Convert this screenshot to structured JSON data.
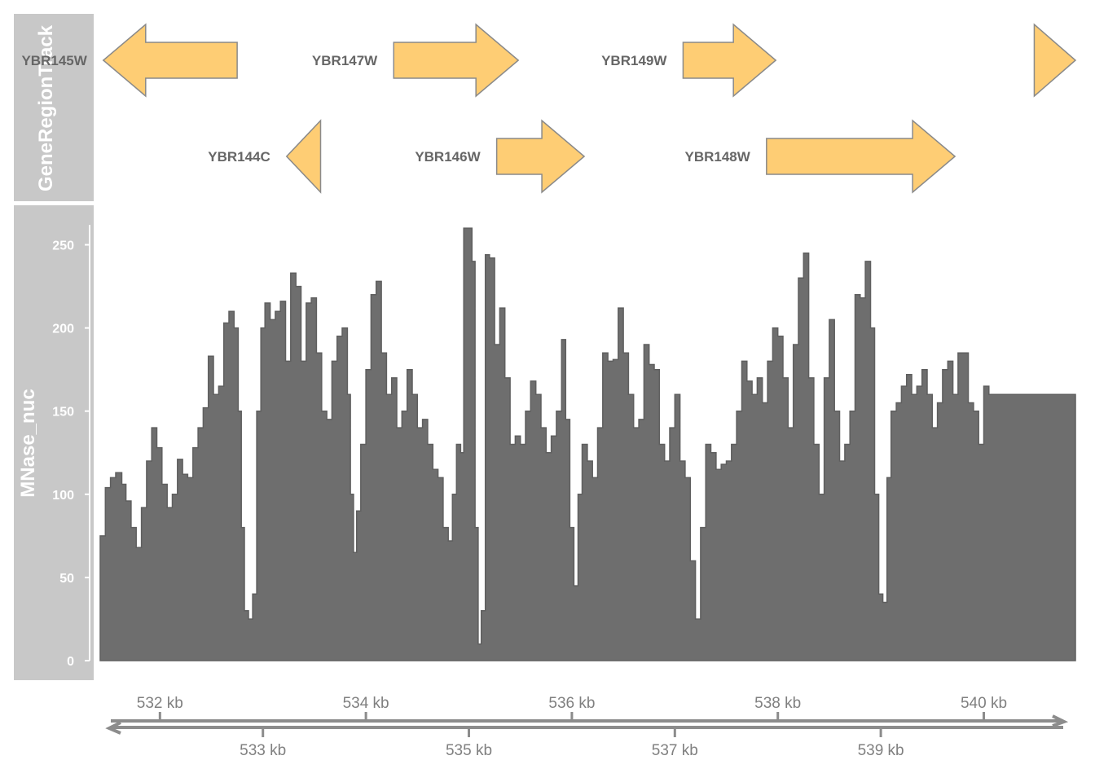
{
  "tracks": {
    "gene_track_title": "GeneRegionTrack",
    "data_track_title": "MNase_nuc"
  },
  "colors": {
    "gene_fill": "#fecd74",
    "gene_border": "#8a8a8a",
    "gene_label": "#666666",
    "data_fill": "#6e6e6e",
    "data_line": "#5f5f5f",
    "title_panel": "#c8c8c8",
    "axis": "#8c8c8c"
  },
  "chart_data": {
    "type": "area",
    "xaxis": {
      "range_kb": [
        531.42,
        540.89
      ],
      "ticks_top": [
        {
          "pos": 532,
          "label": "532 kb"
        },
        {
          "pos": 534,
          "label": "534 kb"
        },
        {
          "pos": 536,
          "label": "536 kb"
        },
        {
          "pos": 538,
          "label": "538 kb"
        },
        {
          "pos": 540,
          "label": "540 kb"
        }
      ],
      "ticks_bottom": [
        {
          "pos": 533,
          "label": "533 kb"
        },
        {
          "pos": 535,
          "label": "535 kb"
        },
        {
          "pos": 537,
          "label": "537 kb"
        },
        {
          "pos": 539,
          "label": "539 kb"
        }
      ]
    },
    "genes": [
      {
        "name": "YBR145W",
        "start": 531.45,
        "end": 532.75,
        "strand": "-",
        "row": 1
      },
      {
        "name": "YBR144C",
        "start": 533.23,
        "end": 533.56,
        "strand": "-",
        "row": 2
      },
      {
        "name": "YBR146W",
        "start": 535.27,
        "end": 536.12,
        "strand": "+",
        "row": 2
      },
      {
        "name": "YBR147W",
        "start": 534.27,
        "end": 535.48,
        "strand": "+",
        "row": 1
      },
      {
        "name": "YBR148W",
        "start": 537.89,
        "end": 539.72,
        "strand": "+",
        "row": 2
      },
      {
        "name": "YBR149W",
        "start": 537.08,
        "end": 537.98,
        "strand": "+",
        "row": 1
      },
      {
        "name": "",
        "start": 540.49,
        "end": 540.89,
        "strand": "+",
        "row": 1
      }
    ],
    "signal": {
      "name": "MNase_nuc",
      "ylim": [
        0,
        262
      ],
      "yticks": [
        0,
        50,
        100,
        150,
        200,
        250
      ],
      "points": [
        [
          531.42,
          75
        ],
        [
          531.47,
          104
        ],
        [
          531.52,
          110
        ],
        [
          531.57,
          113
        ],
        [
          531.63,
          106
        ],
        [
          531.67,
          96
        ],
        [
          531.72,
          80
        ],
        [
          531.77,
          68
        ],
        [
          531.82,
          92
        ],
        [
          531.87,
          120
        ],
        [
          531.92,
          140
        ],
        [
          531.97,
          128
        ],
        [
          532.02,
          106
        ],
        [
          532.07,
          92
        ],
        [
          532.12,
          100
        ],
        [
          532.17,
          121
        ],
        [
          532.22,
          112
        ],
        [
          532.27,
          110
        ],
        [
          532.32,
          128
        ],
        [
          532.37,
          140
        ],
        [
          532.42,
          152
        ],
        [
          532.47,
          183
        ],
        [
          532.52,
          160
        ],
        [
          532.57,
          165
        ],
        [
          532.62,
          203
        ],
        [
          532.67,
          210
        ],
        [
          532.72,
          200
        ],
        [
          532.76,
          150
        ],
        [
          532.79,
          80
        ],
        [
          532.82,
          30
        ],
        [
          532.86,
          25
        ],
        [
          532.9,
          40
        ],
        [
          532.94,
          150
        ],
        [
          532.98,
          200
        ],
        [
          533.02,
          215
        ],
        [
          533.07,
          205
        ],
        [
          533.12,
          210
        ],
        [
          533.17,
          216
        ],
        [
          533.22,
          180
        ],
        [
          533.27,
          233
        ],
        [
          533.32,
          225
        ],
        [
          533.37,
          180
        ],
        [
          533.42,
          215
        ],
        [
          533.47,
          218
        ],
        [
          533.52,
          185
        ],
        [
          533.57,
          150
        ],
        [
          533.62,
          145
        ],
        [
          533.67,
          180
        ],
        [
          533.72,
          195
        ],
        [
          533.77,
          200
        ],
        [
          533.82,
          160
        ],
        [
          533.85,
          100
        ],
        [
          533.88,
          65
        ],
        [
          533.91,
          90
        ],
        [
          533.95,
          130
        ],
        [
          534.0,
          175
        ],
        [
          534.05,
          220
        ],
        [
          534.1,
          228
        ],
        [
          534.15,
          185
        ],
        [
          534.2,
          160
        ],
        [
          534.25,
          170
        ],
        [
          534.3,
          140
        ],
        [
          534.35,
          150
        ],
        [
          534.4,
          175
        ],
        [
          534.45,
          160
        ],
        [
          534.5,
          140
        ],
        [
          534.55,
          145
        ],
        [
          534.6,
          130
        ],
        [
          534.65,
          115
        ],
        [
          534.7,
          110
        ],
        [
          534.75,
          80
        ],
        [
          534.8,
          72
        ],
        [
          534.84,
          100
        ],
        [
          534.88,
          130
        ],
        [
          534.92,
          125
        ],
        [
          534.95,
          260
        ],
        [
          535.0,
          260
        ],
        [
          535.03,
          240
        ],
        [
          535.06,
          80
        ],
        [
          535.09,
          10
        ],
        [
          535.12,
          30
        ],
        [
          535.16,
          244
        ],
        [
          535.2,
          242
        ],
        [
          535.25,
          190
        ],
        [
          535.3,
          212
        ],
        [
          535.35,
          170
        ],
        [
          535.4,
          130
        ],
        [
          535.45,
          135
        ],
        [
          535.5,
          130
        ],
        [
          535.55,
          150
        ],
        [
          535.6,
          168
        ],
        [
          535.65,
          160
        ],
        [
          535.7,
          140
        ],
        [
          535.75,
          125
        ],
        [
          535.8,
          135
        ],
        [
          535.85,
          150
        ],
        [
          535.9,
          193
        ],
        [
          535.94,
          145
        ],
        [
          535.98,
          80
        ],
        [
          536.02,
          45
        ],
        [
          536.06,
          100
        ],
        [
          536.1,
          130
        ],
        [
          536.15,
          120
        ],
        [
          536.2,
          110
        ],
        [
          536.25,
          140
        ],
        [
          536.3,
          185
        ],
        [
          536.35,
          180
        ],
        [
          536.4,
          181
        ],
        [
          536.45,
          212
        ],
        [
          536.5,
          185
        ],
        [
          536.55,
          160
        ],
        [
          536.6,
          140
        ],
        [
          536.65,
          145
        ],
        [
          536.7,
          190
        ],
        [
          536.75,
          178
        ],
        [
          536.8,
          175
        ],
        [
          536.85,
          130
        ],
        [
          536.9,
          120
        ],
        [
          536.95,
          140
        ],
        [
          537.0,
          160
        ],
        [
          537.05,
          120
        ],
        [
          537.1,
          110
        ],
        [
          537.15,
          60
        ],
        [
          537.2,
          25
        ],
        [
          537.25,
          80
        ],
        [
          537.3,
          130
        ],
        [
          537.35,
          125
        ],
        [
          537.4,
          115
        ],
        [
          537.45,
          118
        ],
        [
          537.5,
          120
        ],
        [
          537.55,
          130
        ],
        [
          537.6,
          150
        ],
        [
          537.65,
          180
        ],
        [
          537.7,
          168
        ],
        [
          537.75,
          160
        ],
        [
          537.8,
          170
        ],
        [
          537.85,
          155
        ],
        [
          537.9,
          180
        ],
        [
          537.95,
          200
        ],
        [
          538.0,
          195
        ],
        [
          538.05,
          170
        ],
        [
          538.1,
          140
        ],
        [
          538.15,
          190
        ],
        [
          538.2,
          230
        ],
        [
          538.25,
          245
        ],
        [
          538.3,
          170
        ],
        [
          538.35,
          130
        ],
        [
          538.4,
          100
        ],
        [
          538.45,
          170
        ],
        [
          538.5,
          205
        ],
        [
          538.55,
          150
        ],
        [
          538.6,
          120
        ],
        [
          538.65,
          130
        ],
        [
          538.7,
          150
        ],
        [
          538.75,
          220
        ],
        [
          538.8,
          218
        ],
        [
          538.85,
          240
        ],
        [
          538.9,
          200
        ],
        [
          538.94,
          100
        ],
        [
          538.98,
          40
        ],
        [
          539.02,
          35
        ],
        [
          539.06,
          110
        ],
        [
          539.1,
          150
        ],
        [
          539.15,
          155
        ],
        [
          539.2,
          165
        ],
        [
          539.25,
          172
        ],
        [
          539.3,
          160
        ],
        [
          539.35,
          165
        ],
        [
          539.4,
          175
        ],
        [
          539.45,
          160
        ],
        [
          539.5,
          140
        ],
        [
          539.55,
          155
        ],
        [
          539.6,
          175
        ],
        [
          539.65,
          180
        ],
        [
          539.7,
          160
        ],
        [
          539.75,
          185
        ],
        [
          539.8,
          185
        ],
        [
          539.85,
          155
        ],
        [
          539.9,
          150
        ],
        [
          539.95,
          130
        ],
        [
          540.0,
          165
        ],
        [
          540.05,
          160
        ]
      ]
    }
  }
}
